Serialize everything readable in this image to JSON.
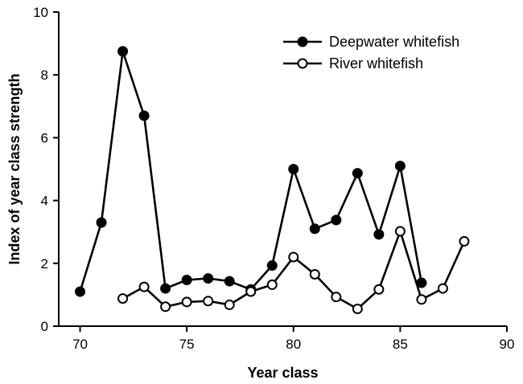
{
  "chart_data": {
    "type": "line",
    "xlabel": "Year class",
    "ylabel": "Index of year class strength",
    "xlim": [
      69,
      90
    ],
    "ylim": [
      0,
      10
    ],
    "xticks": [
      70,
      75,
      80,
      85,
      90
    ],
    "yticks": [
      0,
      2,
      4,
      6,
      8,
      10
    ],
    "grid": false,
    "legend": "top-right",
    "series": [
      {
        "name": "Deepwater whitefish",
        "marker": "filled-circle",
        "color": "#000000",
        "x": [
          70,
          71,
          72,
          73,
          74,
          75,
          76,
          77,
          78,
          79,
          80,
          81,
          82,
          83,
          84,
          85,
          86
        ],
        "y": [
          1.1,
          3.3,
          8.75,
          6.7,
          1.2,
          1.47,
          1.52,
          1.43,
          1.17,
          1.93,
          5.0,
          3.1,
          3.38,
          4.87,
          2.92,
          5.1,
          1.38
        ]
      },
      {
        "name": "River whitefish",
        "marker": "open-circle",
        "color": "#000000",
        "x": [
          72,
          73,
          74,
          75,
          76,
          77,
          78,
          79,
          80,
          81,
          82,
          83,
          84,
          85,
          86,
          87,
          88
        ],
        "y": [
          0.88,
          1.25,
          0.62,
          0.77,
          0.8,
          0.68,
          1.1,
          1.32,
          2.2,
          1.65,
          0.93,
          0.55,
          1.17,
          3.02,
          0.85,
          1.2,
          2.7
        ]
      }
    ]
  }
}
